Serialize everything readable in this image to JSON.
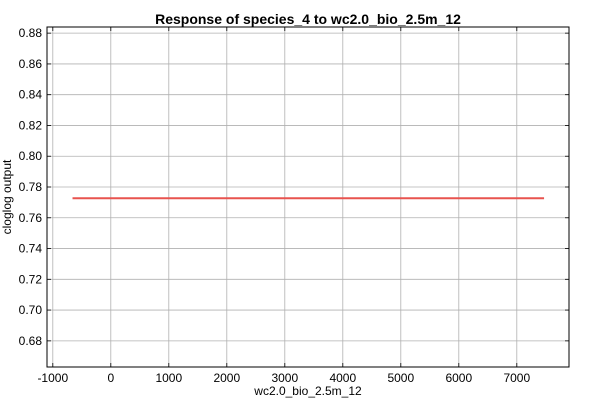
{
  "chart_data": {
    "type": "line",
    "title": "Response of species_4 to wc2.0_bio_2.5m_12",
    "xlabel": "wc2.0_bio_2.5m_12",
    "ylabel": "cloglog output",
    "xlim": [
      -1100,
      7900
    ],
    "ylim": [
      0.663,
      0.884
    ],
    "x_ticks": [
      -1000,
      0,
      1000,
      2000,
      3000,
      4000,
      5000,
      6000,
      7000
    ],
    "x_tick_labels": [
      "-1000",
      "0",
      "1000",
      "2000",
      "3000",
      "4000",
      "5000",
      "6000",
      "7000"
    ],
    "y_ticks": [
      0.68,
      0.7,
      0.72,
      0.74,
      0.76,
      0.78,
      0.8,
      0.82,
      0.84,
      0.86,
      0.88
    ],
    "y_tick_labels": [
      "0.68",
      "0.70",
      "0.72",
      "0.74",
      "0.76",
      "0.78",
      "0.80",
      "0.82",
      "0.84",
      "0.86",
      "0.88"
    ],
    "grid": true,
    "series": [
      {
        "color": "#e8534f",
        "x": [
          -660,
          7470
        ],
        "y": [
          0.7727,
          0.7727
        ]
      }
    ]
  }
}
